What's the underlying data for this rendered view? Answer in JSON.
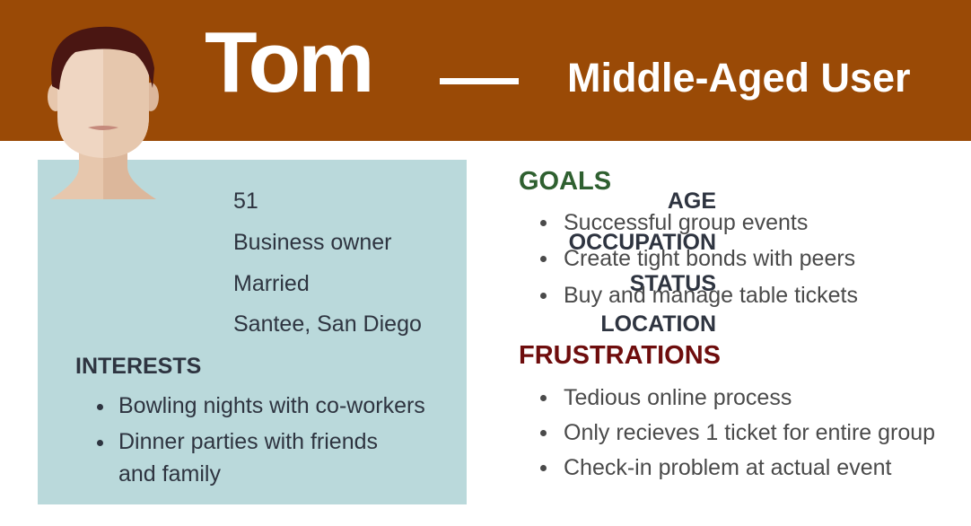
{
  "header": {
    "name": "Tom",
    "role": "Middle-Aged User",
    "bg_color": "#9a4a06"
  },
  "profile": {
    "bg_color": "#bad9db",
    "rows": [
      {
        "label": "AGE",
        "value": "51"
      },
      {
        "label": "OCCUPATION",
        "value": "Business owner"
      },
      {
        "label": "STATUS",
        "value": "Married"
      },
      {
        "label": "LOCATION",
        "value": "Santee, San Diego"
      }
    ],
    "interests_label": "INTERESTS",
    "interests": [
      "Bowling nights with co-workers",
      "Dinner parties with friends and family"
    ]
  },
  "goals": {
    "title": "GOALS",
    "color": "#2f6030",
    "items": [
      "Successful group events",
      "Create tight bonds with peers",
      "Buy and manage table tickets"
    ]
  },
  "frustrations": {
    "title": "FRUSTRATIONS",
    "color": "#6e0d0d",
    "items": [
      "Tedious online process",
      "Only recieves 1 ticket for entire group",
      "Check-in problem at actual event"
    ]
  },
  "icons": {
    "avatar": "person-avatar-icon"
  }
}
